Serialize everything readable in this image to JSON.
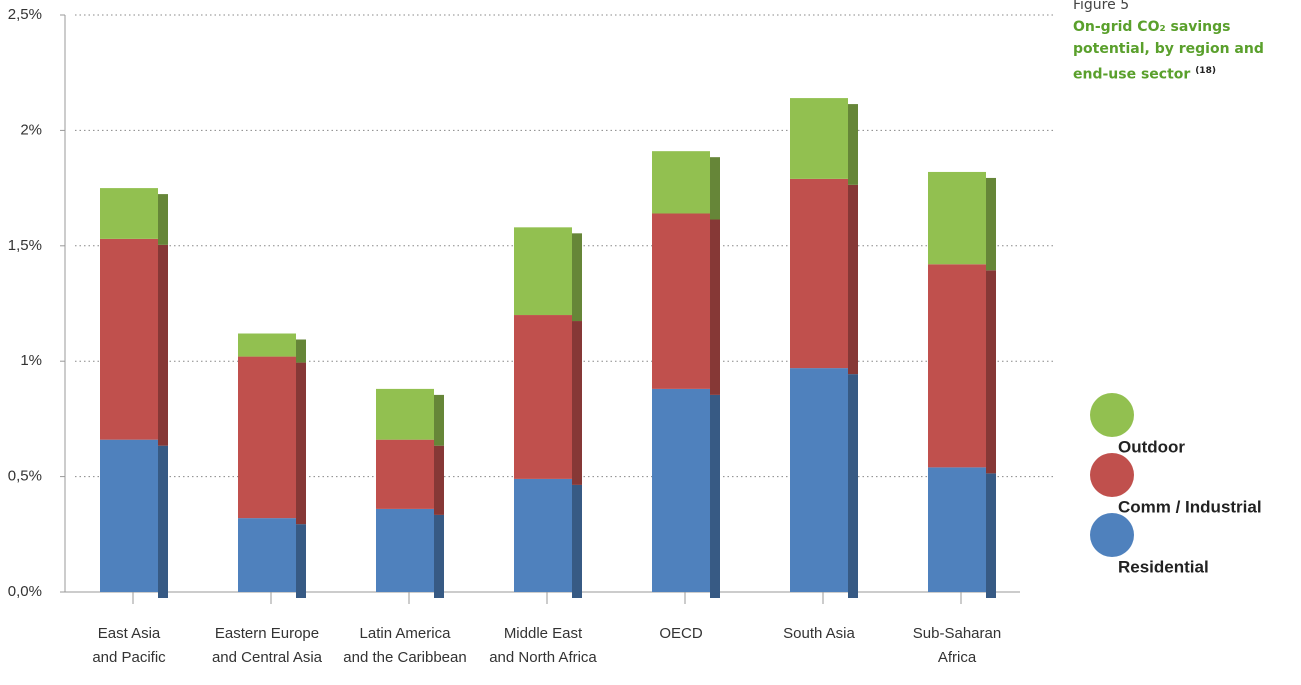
{
  "chart_data": {
    "type": "stacked-bar",
    "figure_label": "Figure 5",
    "title": "On-grid CO₂ savings potential, by region and end-use sector",
    "title_note": "(18)",
    "categories": [
      [
        "East Asia",
        "and Pacific"
      ],
      [
        "Eastern Europe",
        "and Central Asia"
      ],
      [
        "Latin America",
        "and the Caribbean"
      ],
      [
        "Middle East",
        "and North Africa"
      ],
      [
        "OECD"
      ],
      [
        "South Asia"
      ],
      [
        "Sub-Saharan",
        "Africa"
      ]
    ],
    "series": [
      {
        "name": "Residential",
        "color": "#4f81bd",
        "values": [
          0.66,
          0.32,
          0.36,
          0.49,
          0.88,
          0.97,
          0.54
        ]
      },
      {
        "name": "Comm / Industrial",
        "color": "#c0504d",
        "values": [
          0.87,
          0.7,
          0.3,
          0.71,
          0.76,
          0.82,
          0.88
        ]
      },
      {
        "name": "Outdoor",
        "color": "#92c050",
        "values": [
          0.22,
          0.1,
          0.22,
          0.38,
          0.27,
          0.35,
          0.4
        ]
      }
    ],
    "ylim": [
      0,
      2.5
    ],
    "yticks": [
      {
        "value": 0,
        "label": "0,0%"
      },
      {
        "value": 0.5,
        "label": "0,5%"
      },
      {
        "value": 1,
        "label": "1%"
      },
      {
        "value": 1.5,
        "label": "1,5%"
      },
      {
        "value": 2,
        "label": "2%"
      },
      {
        "value": 2.5,
        "label": "2,5%"
      }
    ],
    "grid": true
  }
}
